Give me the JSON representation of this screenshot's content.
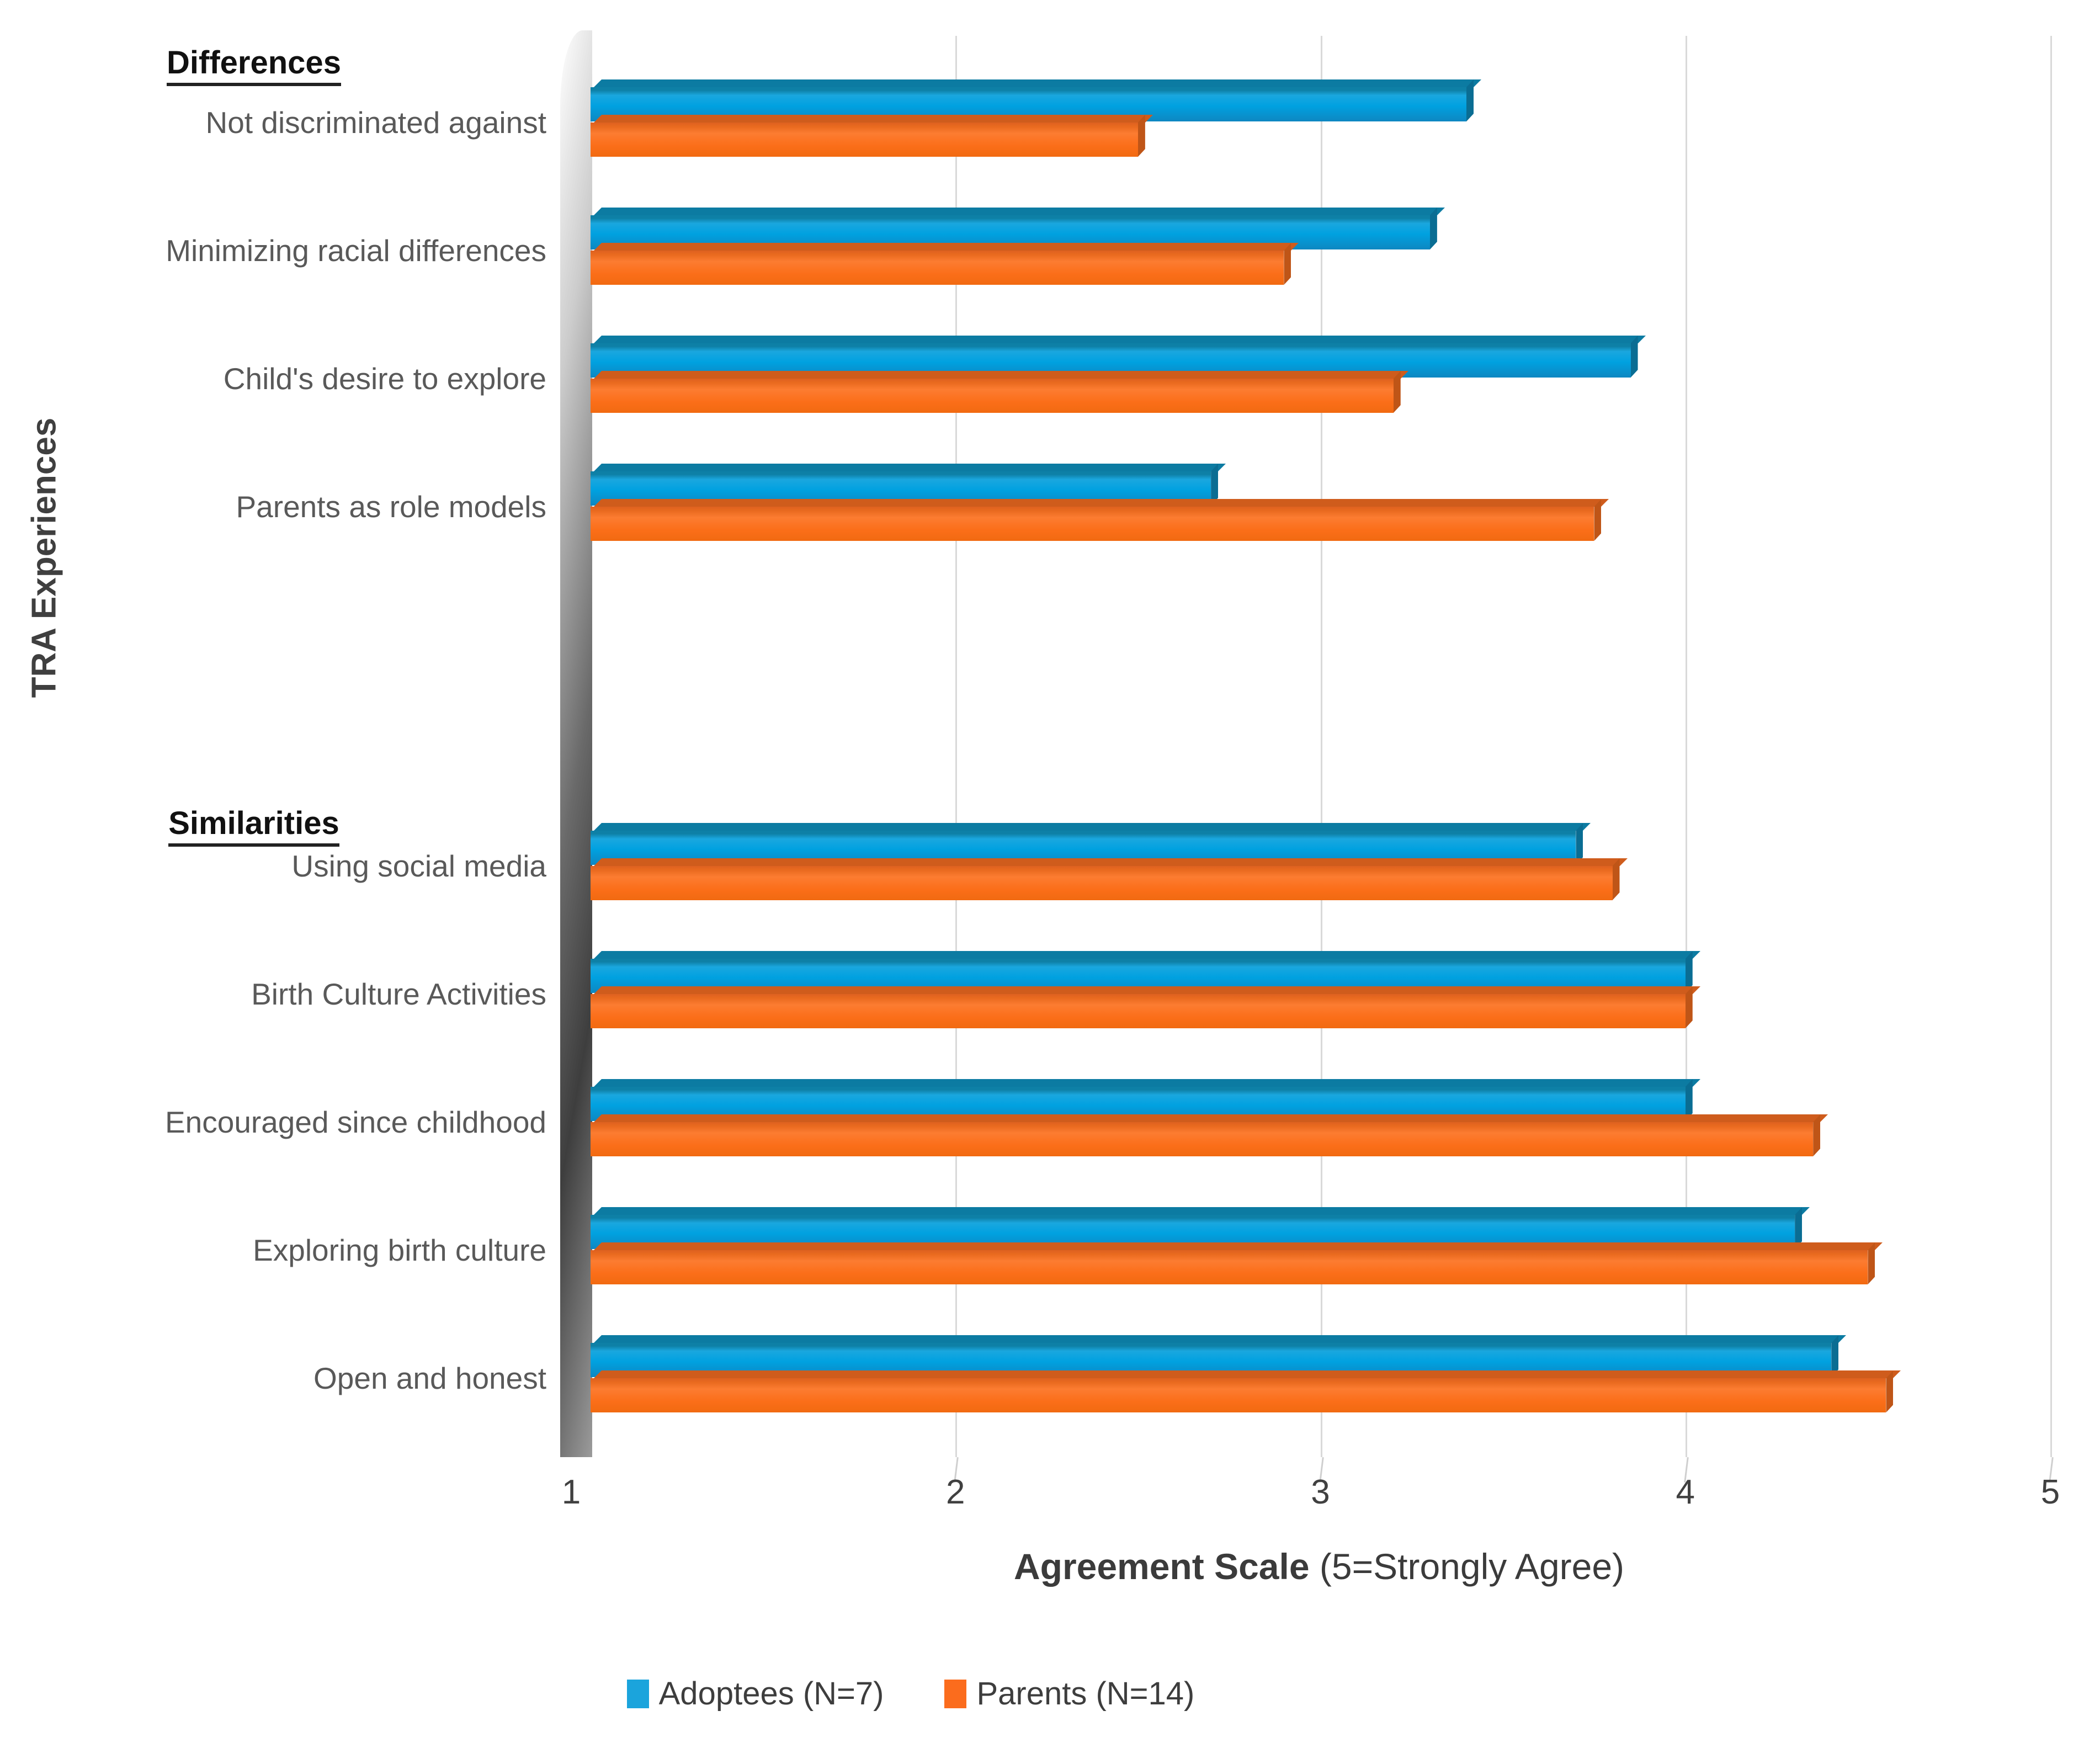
{
  "chart_data": {
    "type": "bar",
    "orientation": "horizontal",
    "ylabel": "TRA Experiences",
    "xlabel_bold": "Agreement Scale",
    "xlabel_note": "(5=Strongly Agree)",
    "xlim": [
      1,
      5
    ],
    "xticks": [
      "1",
      "2",
      "3",
      "4",
      "5"
    ],
    "grid": true,
    "legend_position": "bottom",
    "legend": [
      {
        "name": "Adoptees (N=7)",
        "color": "#1BA4DC"
      },
      {
        "name": "Parents (N=14)",
        "color": "#FB6C1D"
      }
    ],
    "series_keys": [
      "adoptees",
      "parents"
    ],
    "groups": [
      {
        "header": "Differences",
        "items": [
          {
            "label": "Not discriminated against",
            "adoptees": 3.4,
            "parents": 2.5
          },
          {
            "label": "Minimizing racial differences",
            "adoptees": 3.3,
            "parents": 2.9
          },
          {
            "label": "Child's desire to explore",
            "adoptees": 3.85,
            "parents": 3.2
          },
          {
            "label": "Parents as role models",
            "adoptees": 2.7,
            "parents": 3.75
          }
        ]
      },
      {
        "header": "Similarities",
        "items": [
          {
            "label": "Using social media",
            "adoptees": 3.7,
            "parents": 3.8
          },
          {
            "label": "Birth Culture Activities",
            "adoptees": 4.0,
            "parents": 4.0
          },
          {
            "label": "Encouraged since childhood",
            "adoptees": 4.0,
            "parents": 4.35
          },
          {
            "label": "Exploring birth culture",
            "adoptees": 4.3,
            "parents": 4.5
          },
          {
            "label": "Open and honest",
            "adoptees": 4.4,
            "parents": 4.55
          }
        ]
      }
    ]
  }
}
